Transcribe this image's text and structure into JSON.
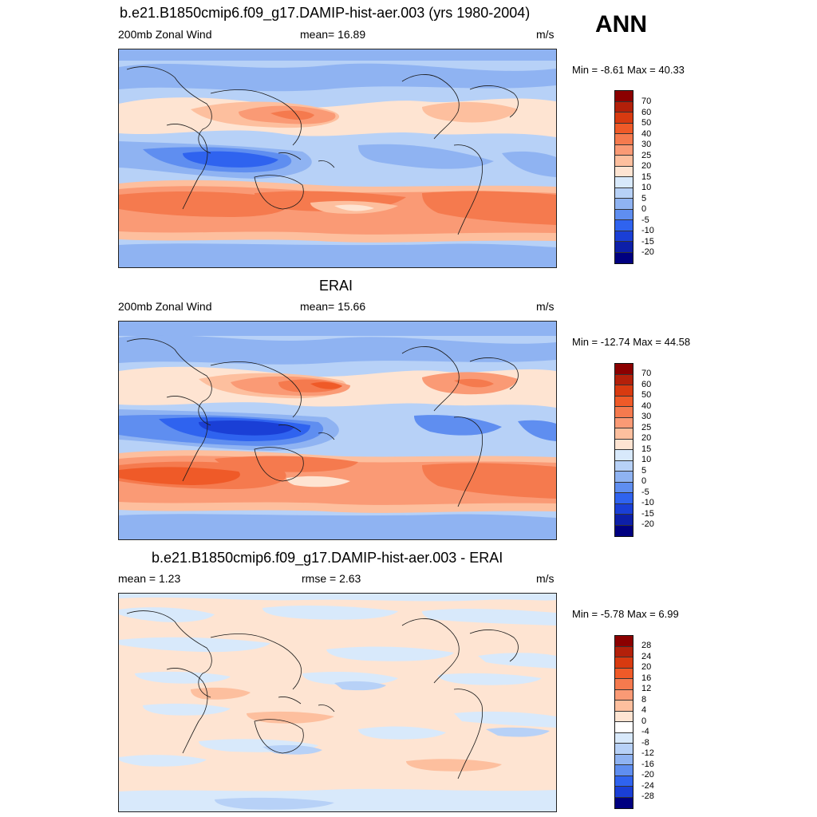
{
  "season": "ANN",
  "panels": [
    {
      "title": "b.e21.B1850cmip6.f09_g17.DAMIP-hist-aer.003 (yrs 1980-2004)",
      "left": "200mb Zonal Wind",
      "center": "mean=  16.89",
      "units": "m/s",
      "minmax": "Min =  -8.61 Max =  40.33",
      "colorbar": {
        "labels": [
          "70",
          "60",
          "50",
          "40",
          "30",
          "25",
          "20",
          "15",
          "10",
          "5",
          "0",
          "-5",
          "-10",
          "-15",
          "-20"
        ],
        "colors": [
          "#8b0000",
          "#b3200a",
          "#d83a10",
          "#ef5a28",
          "#f57a4e",
          "#fa9a75",
          "#fdbf9e",
          "#fee4d2",
          "#d8e9fb",
          "#b7d1f7",
          "#8fb3f2",
          "#5f8ef0",
          "#2f63ef",
          "#1a3fd6",
          "#0d1fa8",
          "#000080"
        ]
      }
    },
    {
      "title": "ERAI",
      "left": "200mb Zonal Wind",
      "center": "mean=  15.66",
      "units": "m/s",
      "minmax": "Min = -12.74 Max =  44.58",
      "colorbar": {
        "labels": [
          "70",
          "60",
          "50",
          "40",
          "30",
          "25",
          "20",
          "15",
          "10",
          "5",
          "0",
          "-5",
          "-10",
          "-15",
          "-20"
        ],
        "colors": [
          "#8b0000",
          "#b3200a",
          "#d83a10",
          "#ef5a28",
          "#f57a4e",
          "#fa9a75",
          "#fdbf9e",
          "#fee4d2",
          "#d8e9fb",
          "#b7d1f7",
          "#8fb3f2",
          "#5f8ef0",
          "#2f63ef",
          "#1a3fd6",
          "#0d1fa8",
          "#000080"
        ]
      }
    },
    {
      "title": "b.e21.B1850cmip6.f09_g17.DAMIP-hist-aer.003 - ERAI",
      "left": "mean =   1.23",
      "center": "rmse =   2.63",
      "units": "m/s",
      "minmax": "Min =  -5.78 Max =   6.99",
      "colorbar": {
        "labels": [
          "28",
          "24",
          "20",
          "16",
          "12",
          "8",
          "4",
          "0",
          "-4",
          "-8",
          "-12",
          "-16",
          "-20",
          "-24",
          "-28"
        ],
        "colors": [
          "#8b0000",
          "#b3200a",
          "#d83a10",
          "#ef5a28",
          "#f57a4e",
          "#fa9a75",
          "#fdbf9e",
          "#fee4d2",
          "#ffffff",
          "#d8e9fb",
          "#b7d1f7",
          "#8fb3f2",
          "#5f8ef0",
          "#2f63ef",
          "#1a3fd6",
          "#0d1fa8",
          "#000080"
        ]
      }
    }
  ]
}
